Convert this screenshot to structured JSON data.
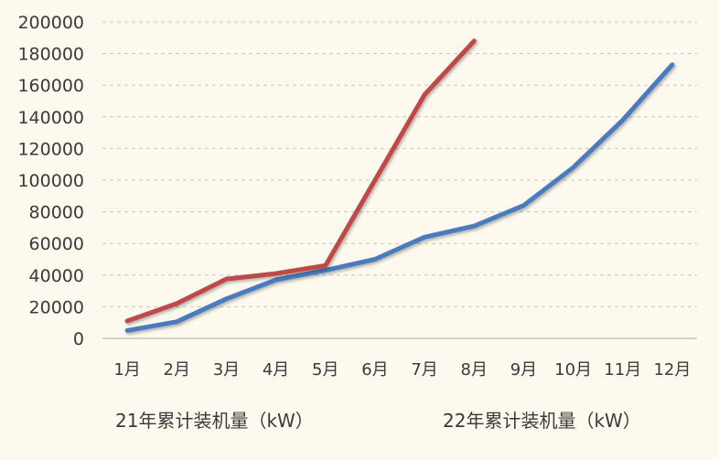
{
  "chart_data": {
    "type": "line",
    "categories": [
      "1月",
      "2月",
      "3月",
      "4月",
      "5月",
      "6月",
      "7月",
      "8月",
      "9月",
      "10月",
      "11月",
      "12月"
    ],
    "ylim": [
      0,
      200000
    ],
    "yticks": [
      0,
      20000,
      40000,
      60000,
      80000,
      100000,
      120000,
      140000,
      160000,
      180000,
      200000
    ],
    "grid": true,
    "legend_position": "bottom",
    "series": [
      {
        "name": "21年累计装机量（kW）",
        "color": "#4a7bbf",
        "values": [
          5000,
          10500,
          25000,
          37000,
          43000,
          50000,
          64000,
          71000,
          84000,
          108000,
          138000,
          173000
        ]
      },
      {
        "name": "22年累计装机量（kW）",
        "color": "#bf4a4a",
        "values": [
          11000,
          22000,
          37500,
          41000,
          46000,
          100000,
          154000,
          188000,
          null,
          null,
          null,
          null
        ]
      }
    ]
  }
}
